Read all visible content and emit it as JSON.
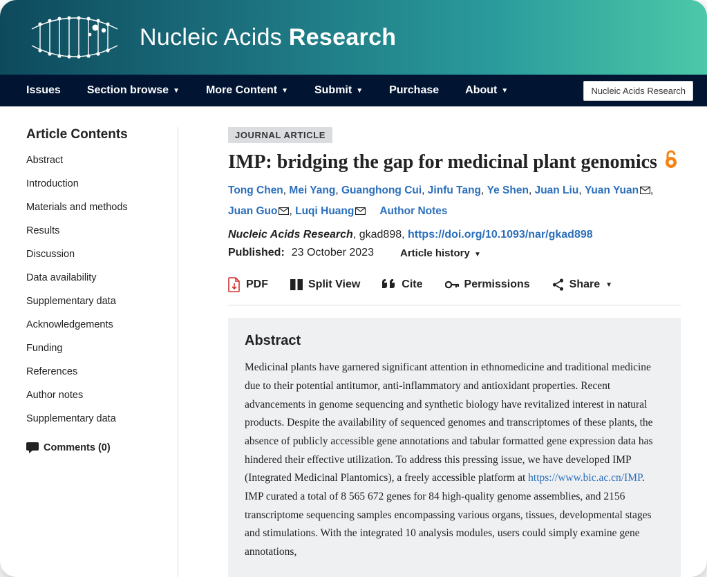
{
  "banner": {
    "title_light": "Nucleic Acids ",
    "title_bold": "Research"
  },
  "nav": {
    "items": [
      {
        "label": "Issues",
        "dropdown": false
      },
      {
        "label": "Section browse",
        "dropdown": true
      },
      {
        "label": "More Content",
        "dropdown": true
      },
      {
        "label": "Submit",
        "dropdown": true
      },
      {
        "label": "Purchase",
        "dropdown": false
      },
      {
        "label": "About",
        "dropdown": true
      }
    ],
    "right_label": "Nucleic Acids Research"
  },
  "sidebar": {
    "title": "Article Contents",
    "items": [
      "Abstract",
      "Introduction",
      "Materials and methods",
      "Results",
      "Discussion",
      "Data availability",
      "Supplementary data",
      "Acknowledgements",
      "Funding",
      "References",
      "Author notes",
      "Supplementary data"
    ],
    "comments_label": "Comments (0)"
  },
  "article": {
    "badge": "JOURNAL ARTICLE",
    "title": "IMP: bridging the gap for medicinal plant genomics",
    "authors": [
      {
        "name": "Tong Chen",
        "mail": false
      },
      {
        "name": "Mei Yang",
        "mail": false
      },
      {
        "name": "Guanghong Cui",
        "mail": false
      },
      {
        "name": "Jinfu Tang",
        "mail": false
      },
      {
        "name": "Ye Shen",
        "mail": false
      },
      {
        "name": "Juan Liu",
        "mail": false
      },
      {
        "name": "Yuan Yuan",
        "mail": true
      },
      {
        "name": "Juan Guo",
        "mail": true
      },
      {
        "name": "Luqi Huang",
        "mail": true
      }
    ],
    "author_notes_label": "Author Notes",
    "journal": "Nucleic Acids Research",
    "citation": ", gkad898, ",
    "doi": "https://doi.org/10.1093/nar/gkad898",
    "published_label": "Published:",
    "published_date": "23 October 2023",
    "history_label": "Article history"
  },
  "toolbar": {
    "pdf": "PDF",
    "split": "Split View",
    "cite": "Cite",
    "permissions": "Permissions",
    "share": "Share"
  },
  "abstract": {
    "heading": "Abstract",
    "text_before": "Medicinal plants have garnered significant attention in ethnomedicine and traditional medicine due to their potential antitumor, anti-inflammatory and antioxidant properties. Recent advancements in genome sequencing and synthetic biology have revitalized interest in natural products. Despite the availability of sequenced genomes and transcriptomes of these plants, the absence of publicly accessible gene annotations and tabular formatted gene expression data has hindered their effective utilization. To address this pressing issue, we have developed IMP (Integrated Medicinal Plantomics), a freely accessible platform at ",
    "link": "https://www.bic.ac.cn/IMP",
    "text_after": ". IMP curated a total of 8 565 672 genes for 84 high-quality genome assemblies, and 2156 transcriptome sequencing samples encompassing various organs, tissues, developmental stages and stimulations. With the integrated 10 analysis modules, users could simply examine gene annotations,"
  },
  "colors": {
    "banner_start": "#0d4a5c",
    "banner_end": "#4cc8a8",
    "navbar_bg": "#011533",
    "link": "#2a6ebb",
    "oa_orange": "#f68212",
    "pdf_red": "#d32f2f",
    "abstract_bg": "#eef0f2"
  }
}
